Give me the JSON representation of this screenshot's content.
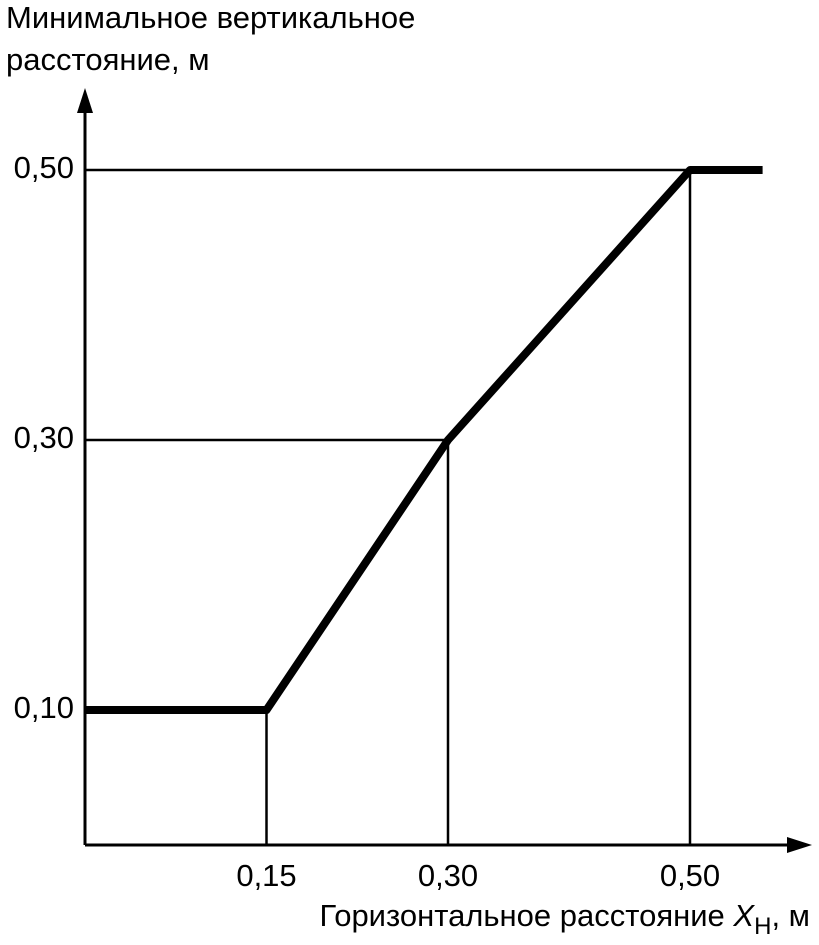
{
  "chart_data": {
    "type": "line",
    "y_label": [
      "Минимальное вертикальное",
      "расстояние, м"
    ],
    "x_label": [
      "Горизонтальное расстояние ",
      "X",
      "Н",
      ", м"
    ],
    "x": [
      0,
      0.15,
      0.3,
      0.5,
      0.56
    ],
    "series": [
      {
        "color": "#000000",
        "values": [
          0.1,
          0.1,
          0.3,
          0.5,
          0.5
        ]
      }
    ],
    "xlim": [
      0,
      0.6
    ],
    "ylim": [
      0,
      0.56
    ],
    "xticks": [
      {
        "value": 0.15,
        "label": "0,15"
      },
      {
        "value": 0.3,
        "label": "0,30"
      },
      {
        "value": 0.5,
        "label": "0,50"
      }
    ],
    "yticks": [
      {
        "value": 0.1,
        "label": "0,10"
      },
      {
        "value": 0.3,
        "label": "0,30"
      },
      {
        "value": 0.5,
        "label": "0,50"
      }
    ],
    "grid": true
  }
}
